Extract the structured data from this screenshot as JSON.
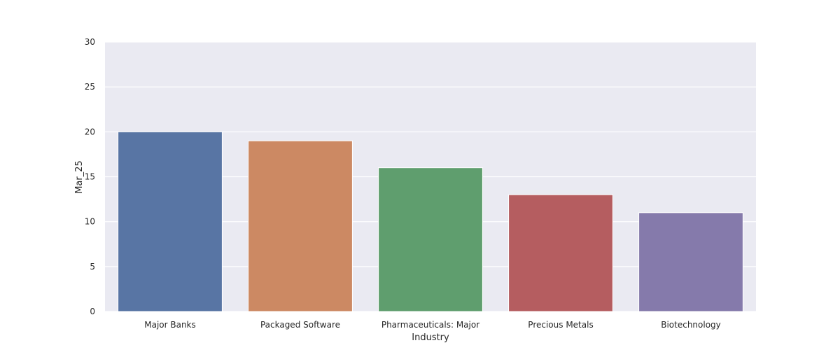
{
  "chart_data": {
    "type": "bar",
    "title": "",
    "xlabel": "Industry",
    "ylabel": "Mar_25",
    "categories": [
      "Major Banks",
      "Packaged Software",
      "Pharmaceuticals: Major",
      "Precious Metals",
      "Biotechnology"
    ],
    "values": [
      20,
      19,
      16,
      13,
      11
    ],
    "colors": [
      "#5875a4",
      "#cc8963",
      "#5f9e6e",
      "#b55d60",
      "#857aab"
    ],
    "ylim": [
      0,
      30
    ],
    "yticks": [
      0,
      5,
      10,
      15,
      20,
      25,
      30
    ],
    "grid": true,
    "background": "#eaeaf2",
    "legend": "none"
  }
}
